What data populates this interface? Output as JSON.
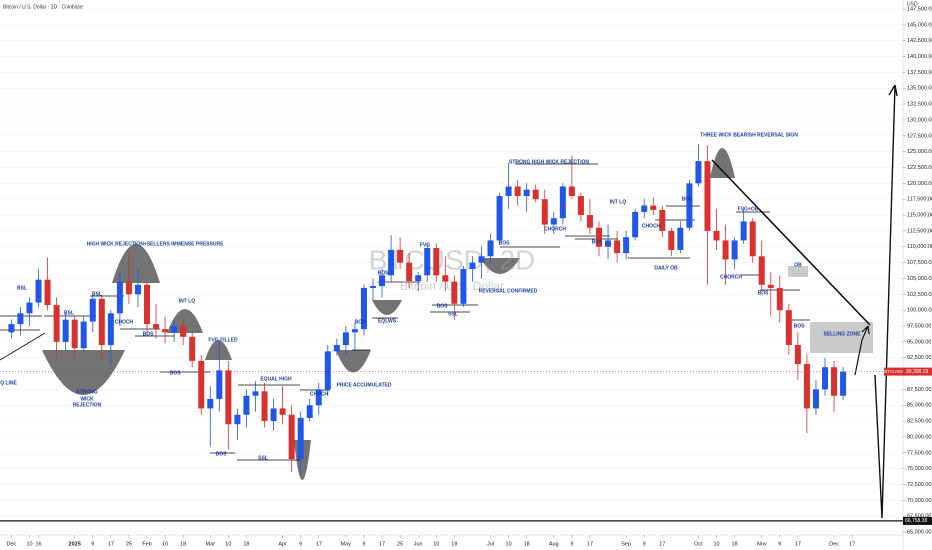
{
  "header": {
    "title": "Bitcoin / U.S. Dollar · 2D · Coinbase",
    "currency": "USD"
  },
  "watermark": {
    "symbol": "BTCUSD, 2D",
    "name": "Bitcoin / U.S. Dollar"
  },
  "chart_data": {
    "type": "candlestick",
    "up_color": "#2157e8",
    "down_color": "#d93030",
    "categories": [
      "Dec",
      null,
      "10",
      "16",
      null,
      null,
      null,
      "2025",
      null,
      "9",
      null,
      "17",
      null,
      "25",
      null,
      "Feb",
      null,
      "10",
      null,
      "18",
      null,
      null,
      "Mar",
      null,
      "10",
      null,
      "18",
      null,
      null,
      null,
      "Apr",
      null,
      "9",
      null,
      "17",
      null,
      null,
      "May",
      null,
      "9",
      null,
      "17",
      null,
      "25",
      null,
      "Jun",
      null,
      "10",
      null,
      "18",
      null,
      null,
      null,
      "Jul",
      null,
      "10",
      null,
      "18",
      null,
      null,
      "Aug",
      null,
      "9",
      null,
      "17",
      null,
      null,
      null,
      "Sep",
      null,
      "9",
      null,
      "17",
      null,
      null,
      null,
      "Oct",
      null,
      "10",
      null,
      "18",
      null,
      null,
      "Nov",
      null,
      "9",
      null,
      "17",
      null,
      null,
      null,
      "Dec",
      null,
      "17",
      null,
      null,
      null,
      null
    ],
    "ohlc": [
      [
        96500,
        98500,
        95500,
        97800
      ],
      [
        97800,
        100500,
        96000,
        99500
      ],
      [
        99500,
        102000,
        97500,
        101200
      ],
      [
        101200,
        106500,
        100500,
        104800
      ],
      [
        104800,
        108300,
        100000,
        100800
      ],
      [
        100800,
        102000,
        92500,
        95000
      ],
      [
        95000,
        99500,
        93500,
        98500
      ],
      [
        98500,
        99000,
        92500,
        94000
      ],
      [
        94000,
        99000,
        93500,
        98200
      ],
      [
        98200,
        102500,
        96500,
        101800
      ],
      [
        101800,
        102200,
        92000,
        94500
      ],
      [
        94500,
        100000,
        91500,
        99500
      ],
      [
        99500,
        106000,
        97500,
        104500
      ],
      [
        104500,
        109500,
        101000,
        102500
      ],
      [
        102500,
        106500,
        100500,
        104000
      ],
      [
        104000,
        104500,
        96000,
        97800
      ],
      [
        97800,
        101000,
        95500,
        97000
      ],
      [
        97000,
        99000,
        94800,
        96500
      ],
      [
        96500,
        98500,
        95000,
        97500
      ],
      [
        97500,
        98500,
        94500,
        95800
      ],
      [
        95800,
        96800,
        91000,
        92000
      ],
      [
        92000,
        93000,
        83500,
        84500
      ],
      [
        84500,
        88000,
        78500,
        86000
      ],
      [
        86000,
        95000,
        84000,
        90500
      ],
      [
        90500,
        92000,
        78000,
        82000
      ],
      [
        82000,
        84500,
        79500,
        83500
      ],
      [
        83500,
        87500,
        81500,
        86500
      ],
      [
        86500,
        88800,
        84000,
        87200
      ],
      [
        87200,
        88500,
        81500,
        82500
      ],
      [
        82500,
        86000,
        81000,
        84500
      ],
      [
        84500,
        88000,
        82000,
        83500
      ],
      [
        83500,
        85000,
        74500,
        76500
      ],
      [
        76500,
        84000,
        74200,
        83000
      ],
      [
        83000,
        86000,
        82500,
        85000
      ],
      [
        85000,
        88500,
        83500,
        87500
      ],
      [
        87500,
        94500,
        86500,
        93500
      ],
      [
        93500,
        95500,
        92800,
        94500
      ],
      [
        94500,
        97500,
        93000,
        96500
      ],
      [
        96500,
        98000,
        93500,
        97000
      ],
      [
        97000,
        104000,
        96000,
        103500
      ],
      [
        103500,
        105000,
        101500,
        103800
      ],
      [
        103800,
        106500,
        102000,
        105500
      ],
      [
        105500,
        111800,
        104500,
        109500
      ],
      [
        109500,
        111500,
        106500,
        107500
      ],
      [
        107500,
        109000,
        103500,
        104600
      ],
      [
        104600,
        106000,
        103000,
        105500
      ],
      [
        105500,
        110500,
        104500,
        109800
      ],
      [
        109800,
        110500,
        104500,
        105500
      ],
      [
        105500,
        108500,
        103000,
        104500
      ],
      [
        104500,
        105500,
        98500,
        101000
      ],
      [
        101000,
        107000,
        100500,
        106500
      ],
      [
        106500,
        108500,
        104500,
        107500
      ],
      [
        107500,
        110000,
        105000,
        108500
      ],
      [
        108500,
        112000,
        107500,
        111000
      ],
      [
        111000,
        118500,
        110500,
        118000
      ],
      [
        118000,
        123200,
        116000,
        119500
      ],
      [
        119500,
        120500,
        116500,
        118000
      ],
      [
        118000,
        120000,
        115500,
        119000
      ],
      [
        119000,
        119800,
        117000,
        117500
      ],
      [
        117500,
        119000,
        112000,
        113500
      ],
      [
        113500,
        115500,
        112000,
        114500
      ],
      [
        114500,
        120000,
        113500,
        119500
      ],
      [
        119500,
        124400,
        117500,
        118000
      ],
      [
        118000,
        118500,
        114000,
        115000
      ],
      [
        115000,
        117500,
        112000,
        113000
      ],
      [
        113000,
        114000,
        108500,
        110000
      ],
      [
        110000,
        113500,
        108000,
        111000
      ],
      [
        111000,
        112500,
        107500,
        109000
      ],
      [
        109000,
        112500,
        108000,
        111500
      ],
      [
        111500,
        116000,
        111000,
        115500
      ],
      [
        115500,
        117500,
        114500,
        116500
      ],
      [
        116500,
        117800,
        115000,
        115800
      ],
      [
        115800,
        116500,
        111500,
        112500
      ],
      [
        112500,
        113000,
        108500,
        109500
      ],
      [
        109500,
        114000,
        109000,
        113000
      ],
      [
        113000,
        120500,
        112500,
        120000
      ],
      [
        120000,
        126200,
        119500,
        123500
      ],
      [
        123500,
        126000,
        104000,
        112500
      ],
      [
        112500,
        116000,
        109500,
        111000
      ],
      [
        111000,
        113500,
        104000,
        108000
      ],
      [
        108000,
        111500,
        106500,
        111000
      ],
      [
        111000,
        116000,
        110500,
        114000
      ],
      [
        114000,
        114500,
        107500,
        108500
      ],
      [
        108500,
        111000,
        103000,
        104000
      ],
      [
        104000,
        106000,
        99000,
        103500
      ],
      [
        103500,
        105500,
        98000,
        100000
      ],
      [
        100000,
        101000,
        93000,
        94500
      ],
      [
        94500,
        96500,
        89000,
        91500
      ],
      [
        91500,
        93000,
        80600,
        84500
      ],
      [
        84500,
        89000,
        83500,
        87500
      ],
      [
        87500,
        92500,
        86500,
        91000
      ],
      [
        91000,
        92000,
        84000,
        86500
      ],
      [
        86500,
        91000,
        85800,
        90308.19
      ],
      null,
      null,
      null,
      null,
      null,
      null,
      null
    ],
    "ylim": [
      64535,
      148920
    ],
    "yticks": [
      {
        "value": 65000,
        "label": "65,000.00"
      },
      {
        "value": 67500,
        "label": "67,500.00"
      },
      {
        "value": 70000,
        "label": "70,000.00"
      },
      {
        "value": 72500,
        "label": "72,500.00"
      },
      {
        "value": 75000,
        "label": "75,000.00"
      },
      {
        "value": 77500,
        "label": "77,500.00"
      },
      {
        "value": 80000,
        "label": "80,000.00"
      },
      {
        "value": 82500,
        "label": "82,500.00"
      },
      {
        "value": 85000,
        "label": "85,000.00"
      },
      {
        "value": 87500,
        "label": "87,500.00"
      },
      {
        "value": 90000,
        "label": "90,000.00"
      },
      {
        "value": 92500,
        "label": "92,500.00"
      },
      {
        "value": 95000,
        "label": "95,000.00"
      },
      {
        "value": 97500,
        "label": "97,500.00"
      },
      {
        "value": 100000,
        "label": "100,000.00"
      },
      {
        "value": 102500,
        "label": "102,500.00"
      },
      {
        "value": 105000,
        "label": "105,000.00"
      },
      {
        "value": 107500,
        "label": "107,500.00"
      },
      {
        "value": 110000,
        "label": "110,000.00"
      },
      {
        "value": 112500,
        "label": "112,500.00"
      },
      {
        "value": 115000,
        "label": "115,000.00"
      },
      {
        "value": 117500,
        "label": "117,500.00"
      },
      {
        "value": 120000,
        "label": "120,000.00"
      },
      {
        "value": 122500,
        "label": "122,500.00"
      },
      {
        "value": 125000,
        "label": "125,000.00"
      },
      {
        "value": 127500,
        "label": "127,500.00"
      },
      {
        "value": 130000,
        "label": "130,000.00"
      },
      {
        "value": 132500,
        "label": "132,500.00"
      },
      {
        "value": 135000,
        "label": "135,000.00"
      },
      {
        "value": 137500,
        "label": "137,500.00"
      },
      {
        "value": 140000,
        "label": "140,000.00"
      },
      {
        "value": 142500,
        "label": "142,500.00"
      },
      {
        "value": 145000,
        "label": "145,000.00"
      },
      {
        "value": 147500,
        "label": "147,500.00"
      }
    ],
    "last_price": {
      "symbol": "BTCUSD",
      "value": 90308.19,
      "label": "90,308.19"
    },
    "level_line": {
      "value": 66758.38,
      "label": "66,758.38"
    },
    "annotations": [
      "BSL",
      "BSL",
      "BSL",
      "CHOCH",
      "BOS",
      "STRONG",
      "WICK",
      "REJECTION",
      "HIGH WICK REJECTION+SELLERS IMMENSE PRESSURE",
      "INT LQ",
      "FVG FILLED",
      "BOS",
      "BOS",
      "EQUAL HIGH",
      "SSL",
      "CHOCH",
      "PRICE ACCUMULATED",
      "BOS",
      "EQLWS",
      "BOS",
      "FVG",
      "BOS",
      "SSL",
      "REVERSAL CONFIRMED",
      "BOS",
      "STRONG HIGH WICK REJECTION",
      "CHORCH",
      "INT LQ",
      "BOS",
      "CHOCH",
      "BOS",
      "DAILY OB",
      "THREE WICK BEARISH REVERSAL SIGN",
      "FVG+OB",
      "CHORCH",
      "OB",
      "BOS",
      "BOS",
      "SELLING ZONE",
      "LQ LINE"
    ]
  }
}
